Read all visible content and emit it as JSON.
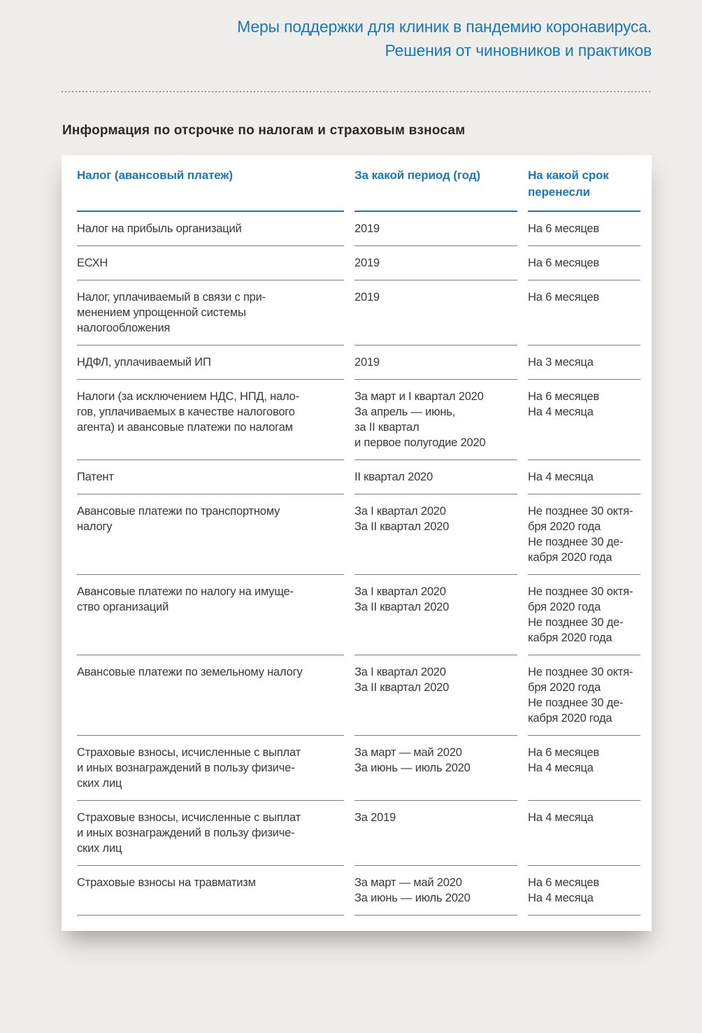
{
  "theme": {
    "accent": "#1b78b5",
    "page_bg": "#eeedea",
    "card_bg": "#ffffff",
    "body_text": "#383838",
    "heading_text": "#2b2b2b",
    "row_rule": "#7d7d7d"
  },
  "header": {
    "title_line1": "Меры поддержки для клиник в пандемию коронавируса.",
    "title_line2": "Решения от чиновников и практиков"
  },
  "section": {
    "heading": "Информация по отсрочке по налогам и страховым взносам"
  },
  "table": {
    "columns": [
      {
        "label_lines": [
          "Налог (авансовый платеж)"
        ]
      },
      {
        "label_lines": [
          "За какой период (год)"
        ]
      },
      {
        "label_lines": [
          "На какой срок",
          "перенесли"
        ]
      }
    ],
    "rows": [
      {
        "tax_lines": [
          "Налог на прибыль организаций"
        ],
        "period_lines": [
          "2019"
        ],
        "term_lines": [
          "На 6 месяцев"
        ]
      },
      {
        "tax_lines": [
          "ЕСХН"
        ],
        "period_lines": [
          "2019"
        ],
        "term_lines": [
          "На 6 месяцев"
        ]
      },
      {
        "tax_lines": [
          "Налог, уплачиваемый в связи с при-",
          "менением упрощенной системы",
          "налогообложения"
        ],
        "period_lines": [
          "2019"
        ],
        "term_lines": [
          "На 6 месяцев"
        ]
      },
      {
        "tax_lines": [
          "НДФЛ, уплачиваемый ИП"
        ],
        "period_lines": [
          "2019"
        ],
        "term_lines": [
          "На 3 месяца"
        ]
      },
      {
        "tax_lines": [
          "Налоги (за исключением НДС, НПД, нало-",
          "гов, уплачиваемых в качестве налогового",
          "агента) и авансовые платежи по налогам"
        ],
        "period_lines": [
          "За март и I квартал 2020",
          "За апрель — июнь,",
          "за II квартал",
          "и первое полугодие 2020"
        ],
        "term_lines": [
          "На 6 месяцев",
          "На 4 месяца"
        ]
      },
      {
        "tax_lines": [
          "Патент"
        ],
        "period_lines": [
          "II квартал 2020"
        ],
        "term_lines": [
          "На 4 месяца"
        ]
      },
      {
        "tax_lines": [
          "Авансовые платежи по транспортному",
          "налогу"
        ],
        "period_lines": [
          "За I квартал 2020",
          "За II квартал 2020"
        ],
        "term_lines": [
          "Не позднее 30 октя-",
          "бря 2020 года",
          "Не позднее 30 де-",
          "кабря 2020 года"
        ]
      },
      {
        "tax_lines": [
          "Авансовые платежи по налогу на имуще-",
          "ство организаций"
        ],
        "period_lines": [
          "За I квартал 2020",
          "За II квартал 2020"
        ],
        "term_lines": [
          "Не позднее 30 октя-",
          "бря 2020 года",
          "Не позднее 30 де-",
          "кабря 2020 года"
        ]
      },
      {
        "tax_lines": [
          "Авансовые платежи по земельному налогу"
        ],
        "period_lines": [
          "За I квартал 2020",
          "За II квартал 2020"
        ],
        "term_lines": [
          "Не позднее 30 октя-",
          "бря 2020 года",
          "Не позднее 30 де-",
          "кабря 2020 года"
        ]
      },
      {
        "tax_lines": [
          "Страховые взносы, исчисленные с выплат",
          "и иных вознаграждений в пользу физиче-",
          "ских лиц"
        ],
        "period_lines": [
          "За март — май 2020",
          "За июнь — июль 2020"
        ],
        "term_lines": [
          "На 6 месяцев",
          "На 4 месяца"
        ]
      },
      {
        "tax_lines": [
          "Страховые взносы, исчисленные с выплат",
          "и иных вознаграждений в пользу физиче-",
          "ских лиц"
        ],
        "period_lines": [
          "За 2019"
        ],
        "term_lines": [
          "На 4 месяца"
        ]
      },
      {
        "tax_lines": [
          "Страховые взносы на травматизм"
        ],
        "period_lines": [
          "За март — май 2020",
          "За июнь — июль 2020"
        ],
        "term_lines": [
          "На 6 месяцев",
          "На 4 месяца"
        ]
      }
    ]
  }
}
